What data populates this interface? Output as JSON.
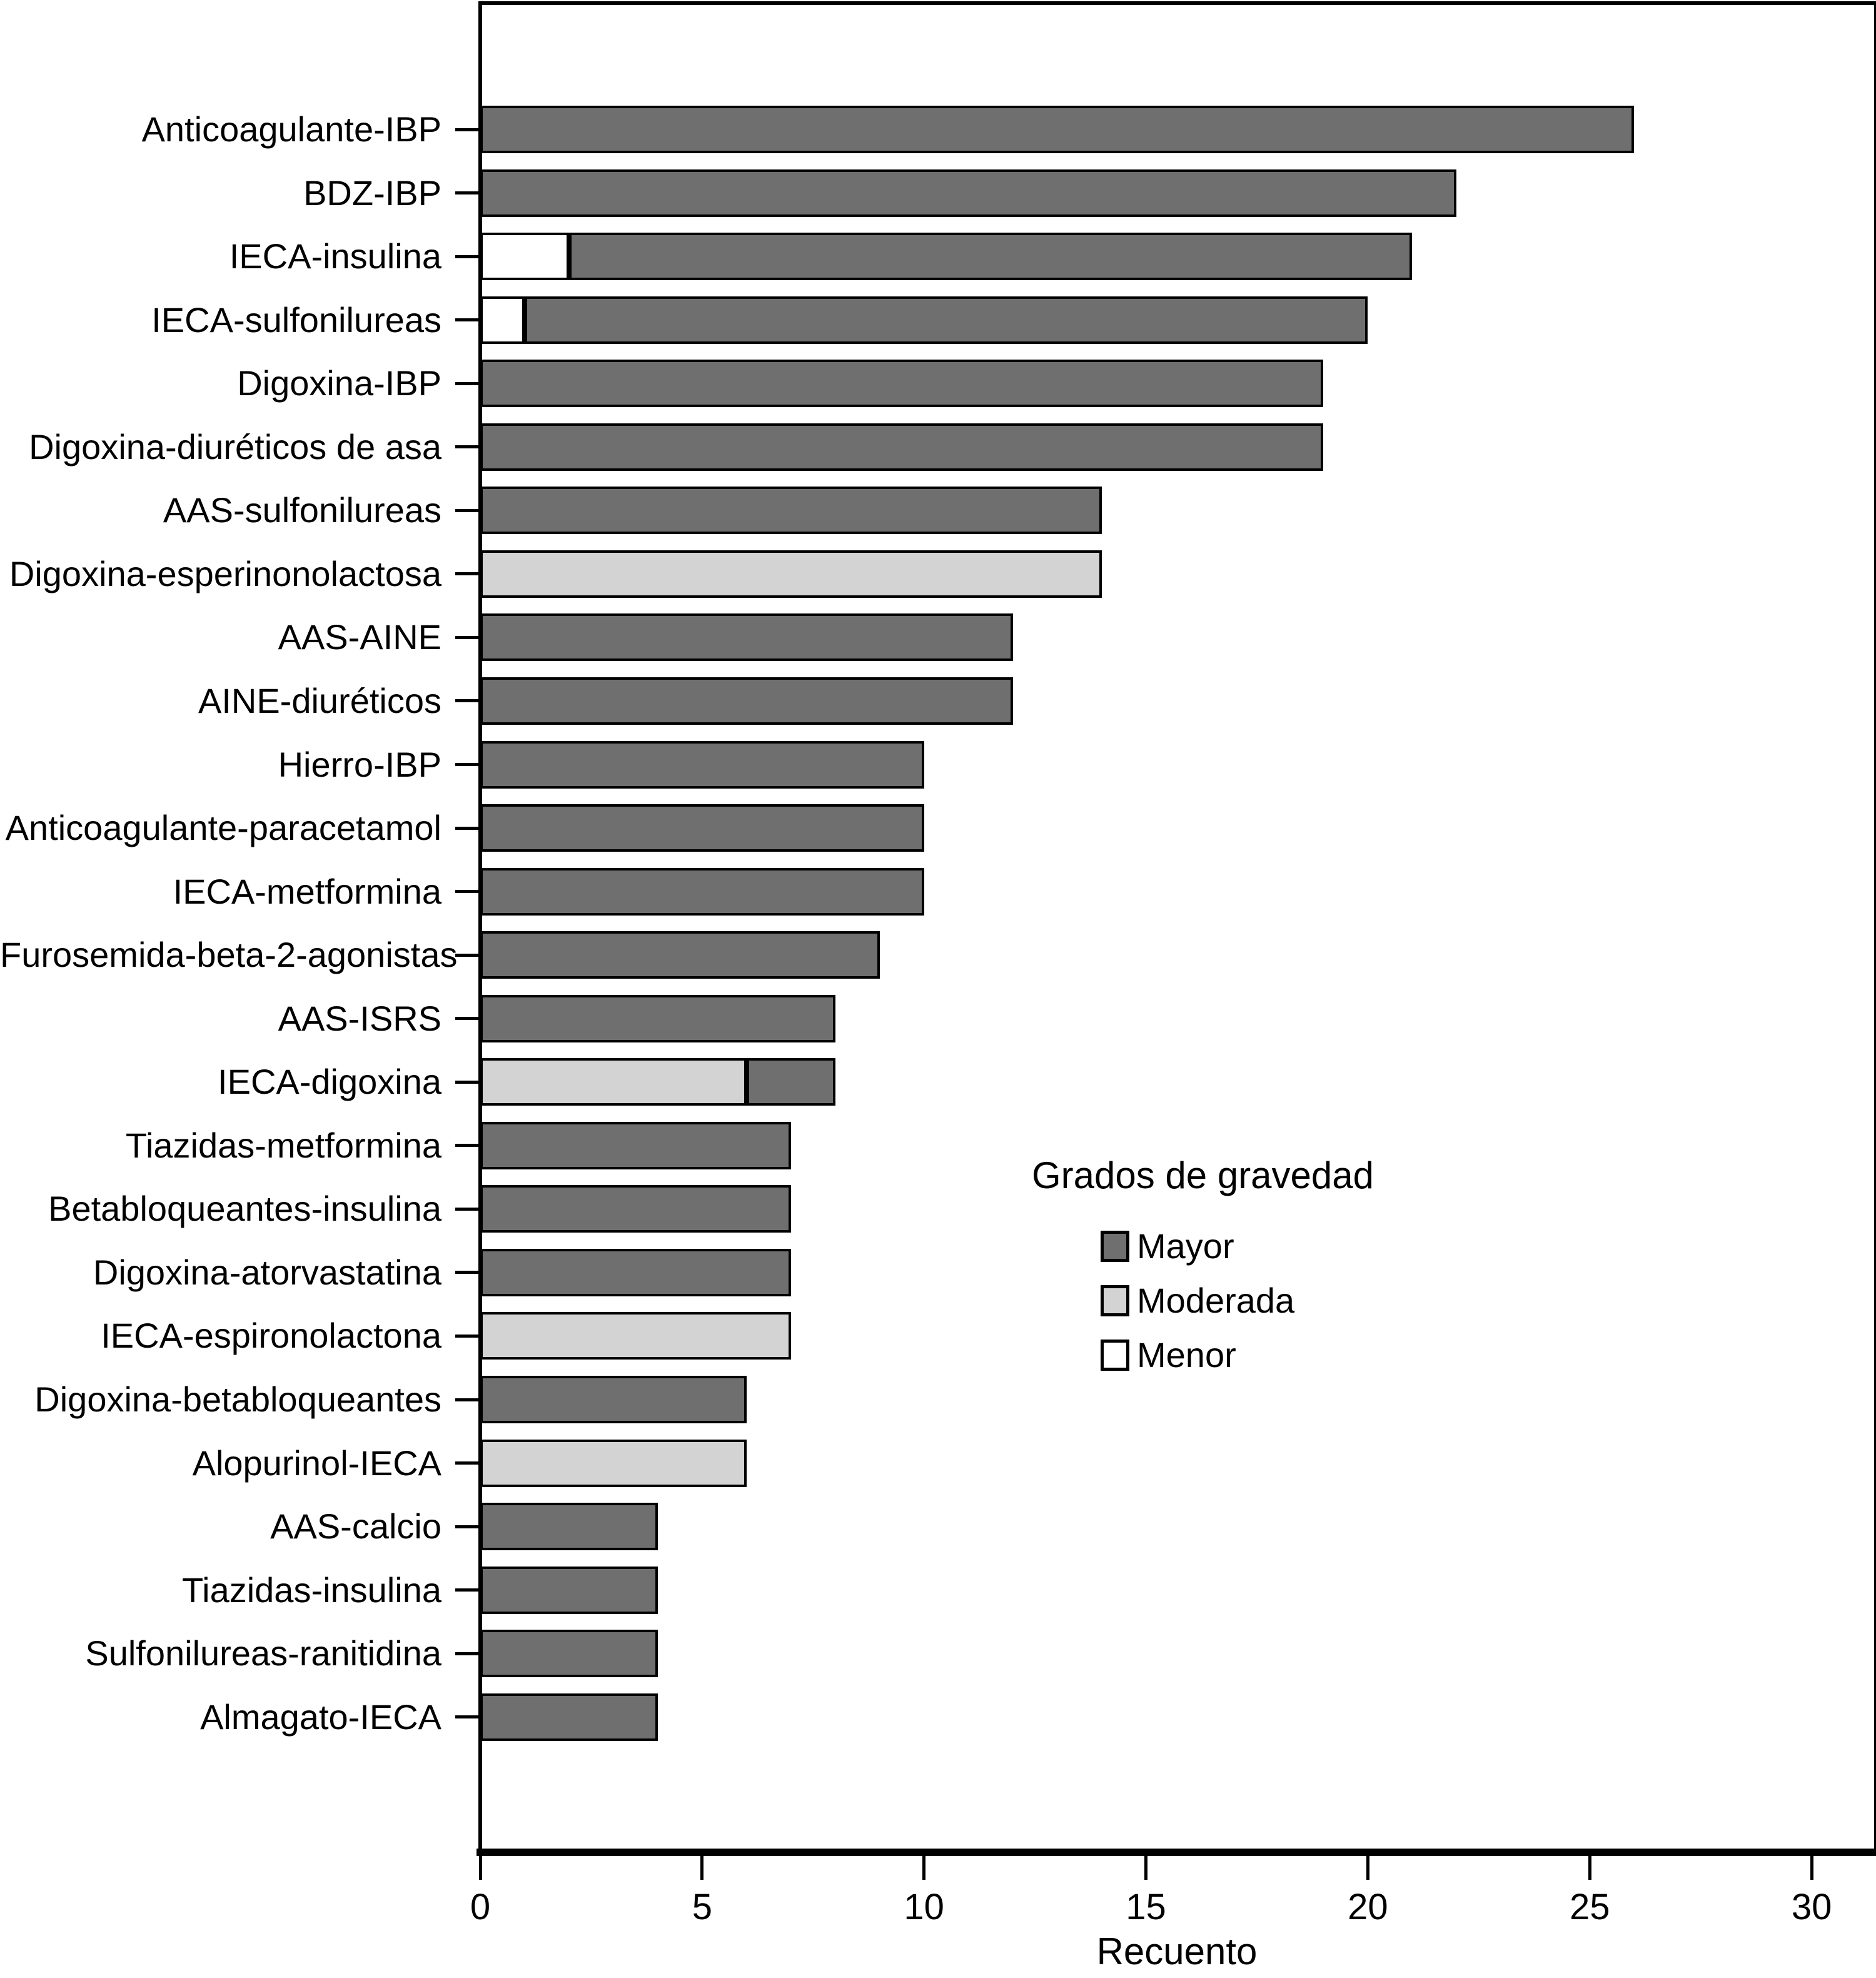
{
  "page": {
    "background": "#ffffff"
  },
  "chart_data": {
    "type": "bar",
    "orientation": "horizontal",
    "title": "",
    "xlabel": "Recuento",
    "ylabel": "",
    "x_ticks": [
      0,
      5,
      10,
      15,
      20,
      25,
      30
    ],
    "xlim": [
      0,
      31.3
    ],
    "grid": false,
    "bar_border_color": "#000000",
    "legend_position": "inside-right",
    "legend": {
      "title": "Grados de gravedad",
      "entries": [
        {
          "label": "Mayor",
          "color": "#6f6f6f"
        },
        {
          "label": "Moderada",
          "color": "#d3d3d3"
        },
        {
          "label": "Menor",
          "color": "#ffffff"
        }
      ]
    },
    "stack_order": [
      "Menor",
      "Moderada",
      "Mayor"
    ],
    "categories": [
      "Anticoagulante-IBP",
      "BDZ-IBP",
      "IECA-insulina",
      "IECA-sulfonilureas",
      "Digoxina-IBP",
      "Digoxina-diuréticos de asa",
      "AAS-sulfonilureas",
      "Digoxina-esperinonolactosa",
      "AAS-AINE",
      "AINE-diuréticos",
      "Hierro-IBP",
      "Anticoagulante-paracetamol",
      "IECA-metformina",
      "Furosemida-beta-2-agonistas",
      "AAS-ISRS",
      "IECA-digoxina",
      "Tiazidas-metformina",
      "Betabloqueantes-insulina",
      "Digoxina-atorvastatina",
      "IECA-espironolactona",
      "Digoxina-betabloqueantes",
      "Alopurinol-IECA",
      "AAS-calcio",
      "Tiazidas-insulina",
      "Sulfonilureas-ranitidina",
      "Almagato-IECA"
    ],
    "series": [
      {
        "name": "Menor",
        "color": "#ffffff",
        "values": [
          0,
          0,
          2,
          1,
          0,
          0,
          0,
          0,
          0,
          0,
          0,
          0,
          0,
          0,
          0,
          0,
          0,
          0,
          0,
          0,
          0,
          0,
          0,
          0,
          0,
          0
        ]
      },
      {
        "name": "Moderada",
        "color": "#d3d3d3",
        "values": [
          0,
          0,
          0,
          0,
          0,
          0,
          0,
          14,
          0,
          0,
          0,
          0,
          0,
          0,
          0,
          6,
          0,
          0,
          0,
          7,
          0,
          6,
          0,
          0,
          0,
          0
        ]
      },
      {
        "name": "Mayor",
        "color": "#6f6f6f",
        "values": [
          26,
          22,
          19,
          19,
          19,
          19,
          14,
          0,
          12,
          12,
          10,
          10,
          10,
          9,
          8,
          2,
          7,
          7,
          7,
          0,
          6,
          0,
          4,
          4,
          4,
          4
        ]
      }
    ]
  }
}
